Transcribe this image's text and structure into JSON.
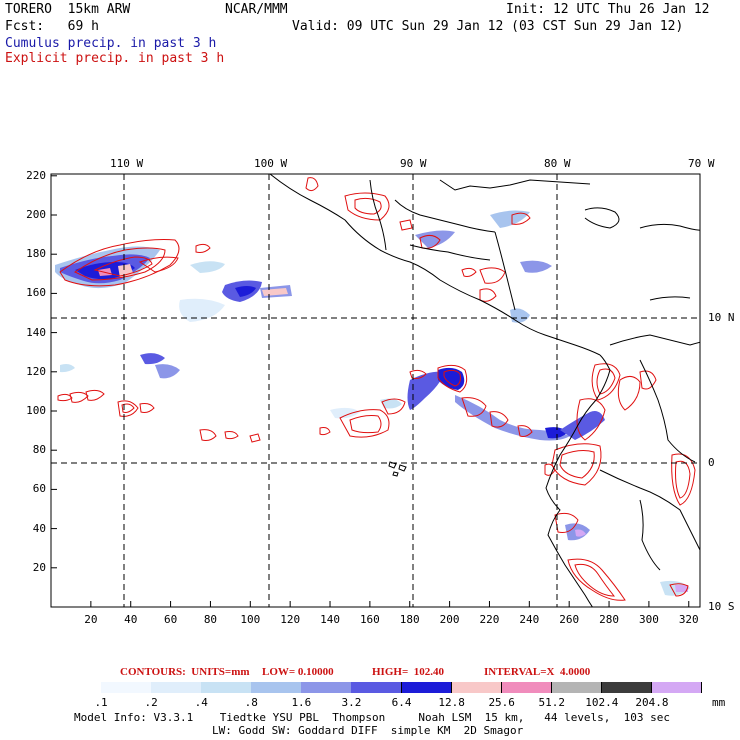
{
  "header": {
    "model": "TORERO  15km ARW",
    "org": "NCAR/MMM",
    "init": "Init: 12 UTC Thu 26 Jan 12",
    "fcst": "Fcst:   69 h",
    "valid": "Valid: 09 UTC Sun 29 Jan 12 (03 CST Sun 29 Jan 12)",
    "field1": "Cumulus precip. in past 3 h",
    "field2": "Explicit precip. in past 3 h"
  },
  "colors": {
    "cumulus": "#1a1aa8",
    "explicit": "#cc1111",
    "contour": "#e01010",
    "coast": "#000000"
  },
  "map": {
    "lon_labels": [
      "110 W",
      "100 W",
      "90 W",
      "80 W",
      "70 W"
    ],
    "lat_labels": [
      "10 N",
      "0",
      "10 S"
    ],
    "y_ticks": [
      "220",
      "200",
      "180",
      "160",
      "140",
      "120",
      "100",
      "80",
      "60",
      "40",
      "20"
    ],
    "x_ticks": [
      "20",
      "40",
      "60",
      "80",
      "100",
      "120",
      "140",
      "160",
      "180",
      "200",
      "220",
      "240",
      "260",
      "280",
      "300",
      "320"
    ]
  },
  "contours_line": {
    "label": "CONTOURS:  UNITS=mm",
    "low": "LOW= 0.10000",
    "high": "HIGH=  102.40",
    "interval": "INTERVAL=X  4.0000"
  },
  "colorbar": {
    "colors": [
      "#ffffff",
      "#f2f8ff",
      "#e0eefb",
      "#c8e2f4",
      "#a8c4ee",
      "#8c96e8",
      "#5a5ae2",
      "#1c1cd8",
      "#f8c8c8",
      "#f08cbc",
      "#b4b4b4",
      "#3c3c3c",
      "#d4a8f4"
    ],
    "labels": [
      ".1",
      ".2",
      ".4",
      ".8",
      "1.6",
      "3.2",
      "6.4",
      "12.8",
      "25.6",
      "51.2",
      "102.4",
      "204.8"
    ],
    "unit": "mm"
  },
  "footer": {
    "line1": "Model Info: V3.3.1    Tiedtke YSU PBL  Thompson     Noah LSM  15 km,   44 levels,  103 sec",
    "line2": "LW: Godd SW: Goddard DIFF  simple KM  2D Smagor"
  }
}
